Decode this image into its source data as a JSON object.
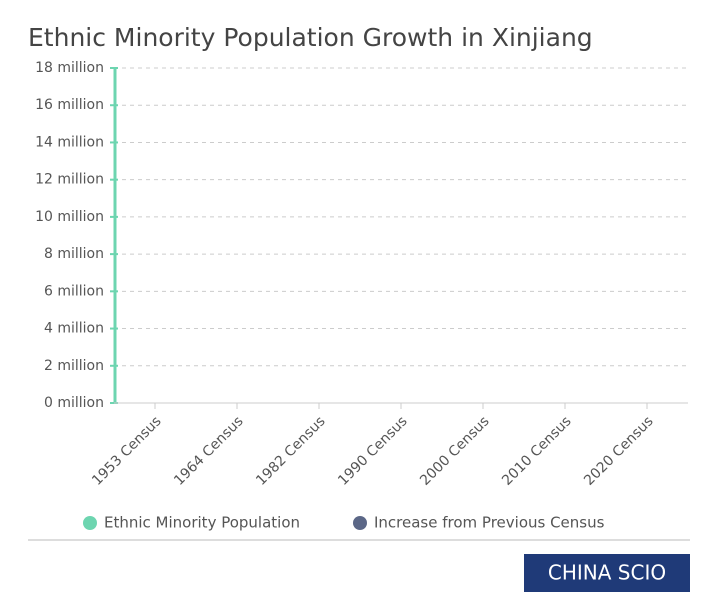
{
  "chart_data": {
    "type": "bar",
    "title": "Ethnic Minority Population Growth in Xinjiang",
    "categories": [
      "1953 Census",
      "1964 Census",
      "1982 Census",
      "1990 Census",
      "2000 Census",
      "2010 Census",
      "2020 Census"
    ],
    "series": [
      {
        "name": "Ethnic Minority Population",
        "color": "#6dd5b0",
        "values": [
          null,
          null,
          null,
          null,
          null,
          null,
          null
        ]
      },
      {
        "name": "Increase from Previous Census",
        "color": "#5b6787",
        "values": [
          null,
          null,
          null,
          null,
          null,
          null,
          null
        ]
      }
    ],
    "ylim": [
      0,
      18
    ],
    "yticks": [
      {
        "value": 0,
        "label": "0 million"
      },
      {
        "value": 2,
        "label": "2 million"
      },
      {
        "value": 4,
        "label": "4 million"
      },
      {
        "value": 6,
        "label": "6 million"
      },
      {
        "value": 8,
        "label": "8 million"
      },
      {
        "value": 10,
        "label": "10 million"
      },
      {
        "value": 12,
        "label": "12 million"
      },
      {
        "value": 14,
        "label": "14 million"
      },
      {
        "value": 16,
        "label": "16 million"
      },
      {
        "value": 18,
        "label": "18 million"
      }
    ],
    "grid": true,
    "legend": "bottom",
    "source": "CHINA SCIO"
  }
}
